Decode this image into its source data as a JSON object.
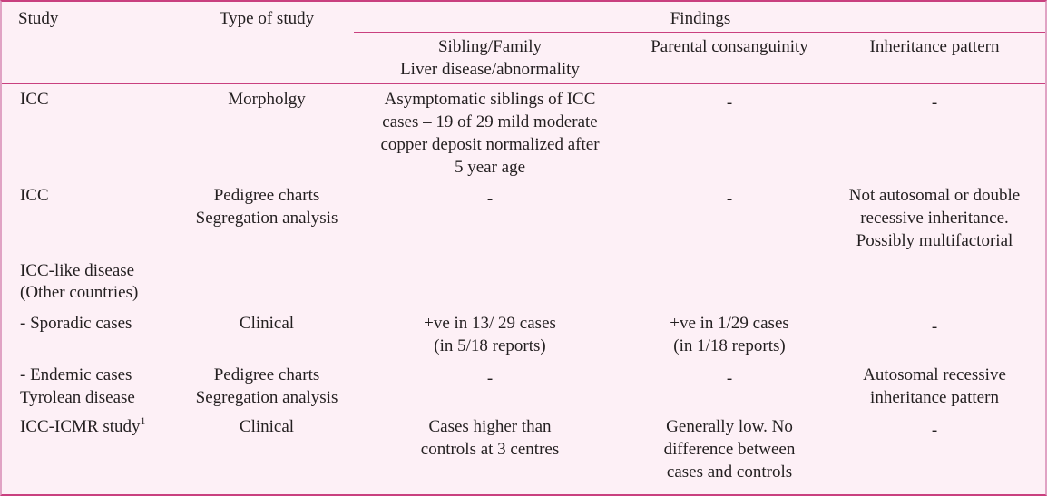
{
  "header": {
    "study": "Study",
    "type_of_study": "Type of study",
    "findings": "Findings",
    "sibling_line1": "Sibling/Family",
    "sibling_line2": "Liver disease/abnormality",
    "consanguinity": "Parental consanguinity",
    "inheritance": "Inheritance pattern"
  },
  "rows": [
    {
      "study": "ICC",
      "type": [
        "Morpholgy"
      ],
      "sibling": [
        "Asymptomatic siblings of  ICC",
        "cases – 19 of 29 mild moderate",
        "copper deposit normalized after",
        "5 year age"
      ],
      "consanguinity": [
        "-"
      ],
      "inheritance": [
        "-"
      ]
    },
    {
      "study": "ICC",
      "type": [
        "Pedigree charts",
        "Segregation analysis"
      ],
      "sibling": [
        "-"
      ],
      "consanguinity": [
        "-"
      ],
      "inheritance": [
        "Not autosomal or double",
        "recessive inheritance.",
        "Possibly multifactorial"
      ]
    },
    {
      "study_lines": [
        "ICC-like disease",
        "(Other countries)"
      ]
    },
    {
      "study": "- Sporadic cases",
      "type": [
        "Clinical"
      ],
      "sibling": [
        "+ve in 13/ 29 cases",
        "(in 5/18 reports)"
      ],
      "consanguinity": [
        "+ve in 1/29 cases",
        "(in 1/18 reports)"
      ],
      "inheritance": [
        "-"
      ]
    },
    {
      "study_lines": [
        "- Endemic cases",
        "Tyrolean disease"
      ],
      "type": [
        "Pedigree charts",
        "Segregation analysis"
      ],
      "sibling": [
        "-"
      ],
      "consanguinity": [
        "-"
      ],
      "inheritance": [
        "Autosomal recessive",
        "inheritance pattern"
      ]
    },
    {
      "study": "ICC-ICMR study",
      "study_sup": "1",
      "type": [
        "Clinical"
      ],
      "sibling": [
        "Cases higher than",
        "controls at 3 centres"
      ],
      "consanguinity": [
        "Generally low. No",
        "difference between",
        "cases and controls"
      ],
      "inheritance": [
        "-"
      ]
    }
  ]
}
